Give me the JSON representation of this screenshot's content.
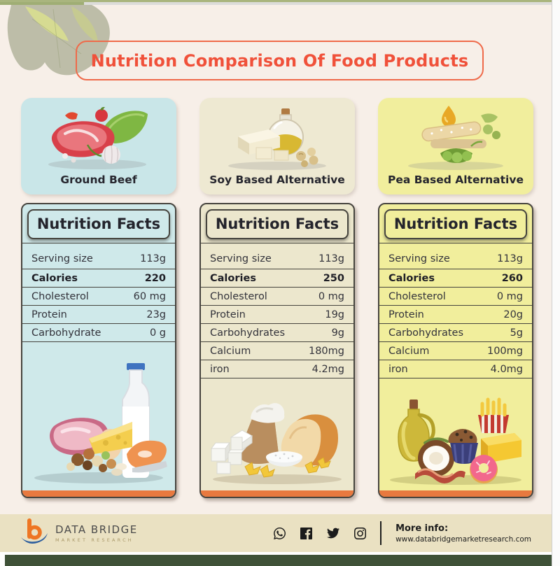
{
  "header": {
    "title": "Nutrition Comparison Of Food Products"
  },
  "products": [
    {
      "name": "Ground Beef",
      "facts_title": "Nutrition Facts",
      "rows": [
        {
          "label": "Serving size",
          "value": "113g"
        },
        {
          "label": "Calories",
          "value": "220",
          "bold": true
        },
        {
          "label": "Cholesterol",
          "value": "60 mg"
        },
        {
          "label": "Protein",
          "value": "23g"
        },
        {
          "label": "Carbohydrate",
          "value": "0 g"
        }
      ]
    },
    {
      "name": "Soy Based Alternative",
      "facts_title": "Nutrition Facts",
      "rows": [
        {
          "label": "Serving size",
          "value": "113g"
        },
        {
          "label": "Calories",
          "value": "250",
          "bold": true
        },
        {
          "label": "Cholesterol",
          "value": "0 mg"
        },
        {
          "label": "Protein",
          "value": "19g"
        },
        {
          "label": "Carbohydrates",
          "value": "9g"
        },
        {
          "label": "Calcium",
          "value": "180mg"
        },
        {
          "label": "iron",
          "value": "4.2mg"
        }
      ]
    },
    {
      "name": "Pea Based Alternative",
      "facts_title": "Nutrition Facts",
      "rows": [
        {
          "label": "Serving size",
          "value": "113g"
        },
        {
          "label": "Calories",
          "value": "260",
          "bold": true
        },
        {
          "label": "Cholesterol",
          "value": "0 mg"
        },
        {
          "label": "Protein",
          "value": "20g"
        },
        {
          "label": "Carbohydrates",
          "value": "5g"
        },
        {
          "label": "Calcium",
          "value": "100mg"
        },
        {
          "label": "iron",
          "value": "4.0mg"
        }
      ]
    }
  ],
  "footer": {
    "brand_name": "DATA BRIDGE",
    "brand_tagline": "MARKET RESEARCH",
    "more_info_label": "More info:",
    "website": "www.databridgemarketresearch.com",
    "social": [
      "whatsapp",
      "facebook",
      "twitter",
      "instagram"
    ]
  },
  "colors": {
    "accent_orange": "#f0513a",
    "panel_blue": "#cfe9ea",
    "panel_cream": "#ece7cd",
    "panel_yellow": "#f1ee9c",
    "strip_orange": "#e8793f",
    "footer_bar_green": "#3f5238",
    "background_cream": "#f7efe8"
  }
}
